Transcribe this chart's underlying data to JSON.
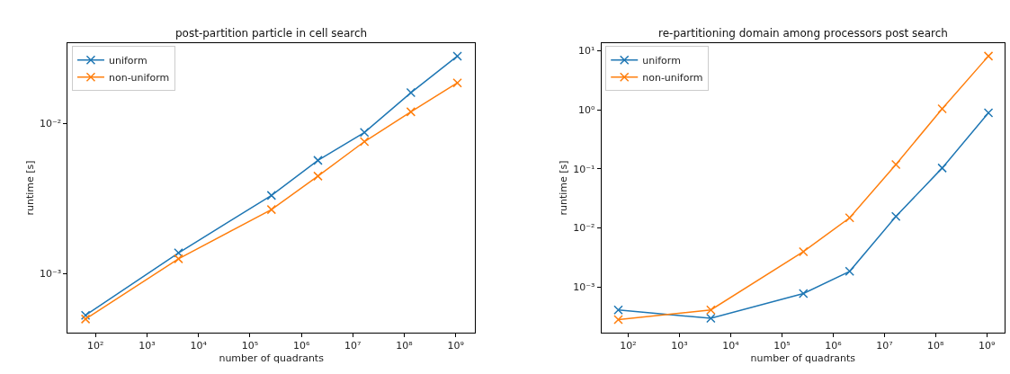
{
  "chart_data": [
    {
      "type": "line",
      "title": "post-partition particle in cell search",
      "xlabel": "number of quadrants",
      "ylabel": "runtime [s]",
      "log": "xy",
      "legend": "top left",
      "marker": "cross",
      "line_style": "solid",
      "x": [
        64,
        4096,
        262144,
        2097152,
        16777216,
        134217728,
        1073741824
      ],
      "series": [
        {
          "name": "uniform",
          "color": "#1f77b4",
          "values": [
            0.00053,
            0.00138,
            0.00333,
            0.0057,
            0.00875,
            0.0161,
            0.0282
          ]
        },
        {
          "name": "non-uniform",
          "color": "#ff7f0e",
          "values": [
            0.0005,
            0.00126,
            0.00268,
            0.00448,
            0.0076,
            0.012,
            0.0187
          ]
        }
      ],
      "xlim": [
        29,
        2340000000
      ],
      "ylim": [
        0.000406,
        0.0344
      ],
      "xticks": [
        {
          "value": 100,
          "label": "10²"
        },
        {
          "value": 1000,
          "label": "10³"
        },
        {
          "value": 10000,
          "label": "10⁴"
        },
        {
          "value": 100000,
          "label": "10⁵"
        },
        {
          "value": 1000000,
          "label": "10⁶"
        },
        {
          "value": 10000000,
          "label": "10⁷"
        },
        {
          "value": 100000000,
          "label": "10⁸"
        },
        {
          "value": 1000000000,
          "label": "10⁹"
        }
      ],
      "yticks": [
        {
          "value": 0.001,
          "label": "10⁻³"
        },
        {
          "value": 0.01,
          "label": "10⁻²"
        }
      ]
    },
    {
      "type": "line",
      "title": "re-partitioning domain among processors post search",
      "xlabel": "number of quadrants",
      "ylabel": "runtime [s]",
      "log": "xy",
      "legend": "top left",
      "marker": "cross",
      "line_style": "solid",
      "x": [
        64,
        4096,
        262144,
        2097152,
        16777216,
        134217728,
        1073741824
      ],
      "series": [
        {
          "name": "uniform",
          "color": "#1f77b4",
          "values": [
            0.000412,
            0.000297,
            0.00078,
            0.00185,
            0.0157,
            0.1035,
            0.89
          ]
        },
        {
          "name": "non-uniform",
          "color": "#ff7f0e",
          "values": [
            0.000283,
            0.000412,
            0.00398,
            0.0149,
            0.119,
            1.04,
            8.1
          ]
        }
      ],
      "xlim": [
        30,
        2200000000
      ],
      "ylim": [
        0.00017,
        13.4
      ],
      "xticks": [
        {
          "value": 100,
          "label": "10²"
        },
        {
          "value": 1000,
          "label": "10³"
        },
        {
          "value": 10000,
          "label": "10⁴"
        },
        {
          "value": 100000,
          "label": "10⁵"
        },
        {
          "value": 1000000,
          "label": "10⁶"
        },
        {
          "value": 10000000,
          "label": "10⁷"
        },
        {
          "value": 100000000,
          "label": "10⁸"
        },
        {
          "value": 1000000000,
          "label": "10⁹"
        }
      ],
      "yticks": [
        {
          "value": 0.001,
          "label": "10⁻³"
        },
        {
          "value": 0.01,
          "label": "10⁻²"
        },
        {
          "value": 0.1,
          "label": "10⁻¹"
        },
        {
          "value": 1,
          "label": "10⁰"
        },
        {
          "value": 10,
          "label": "10¹"
        }
      ]
    }
  ]
}
